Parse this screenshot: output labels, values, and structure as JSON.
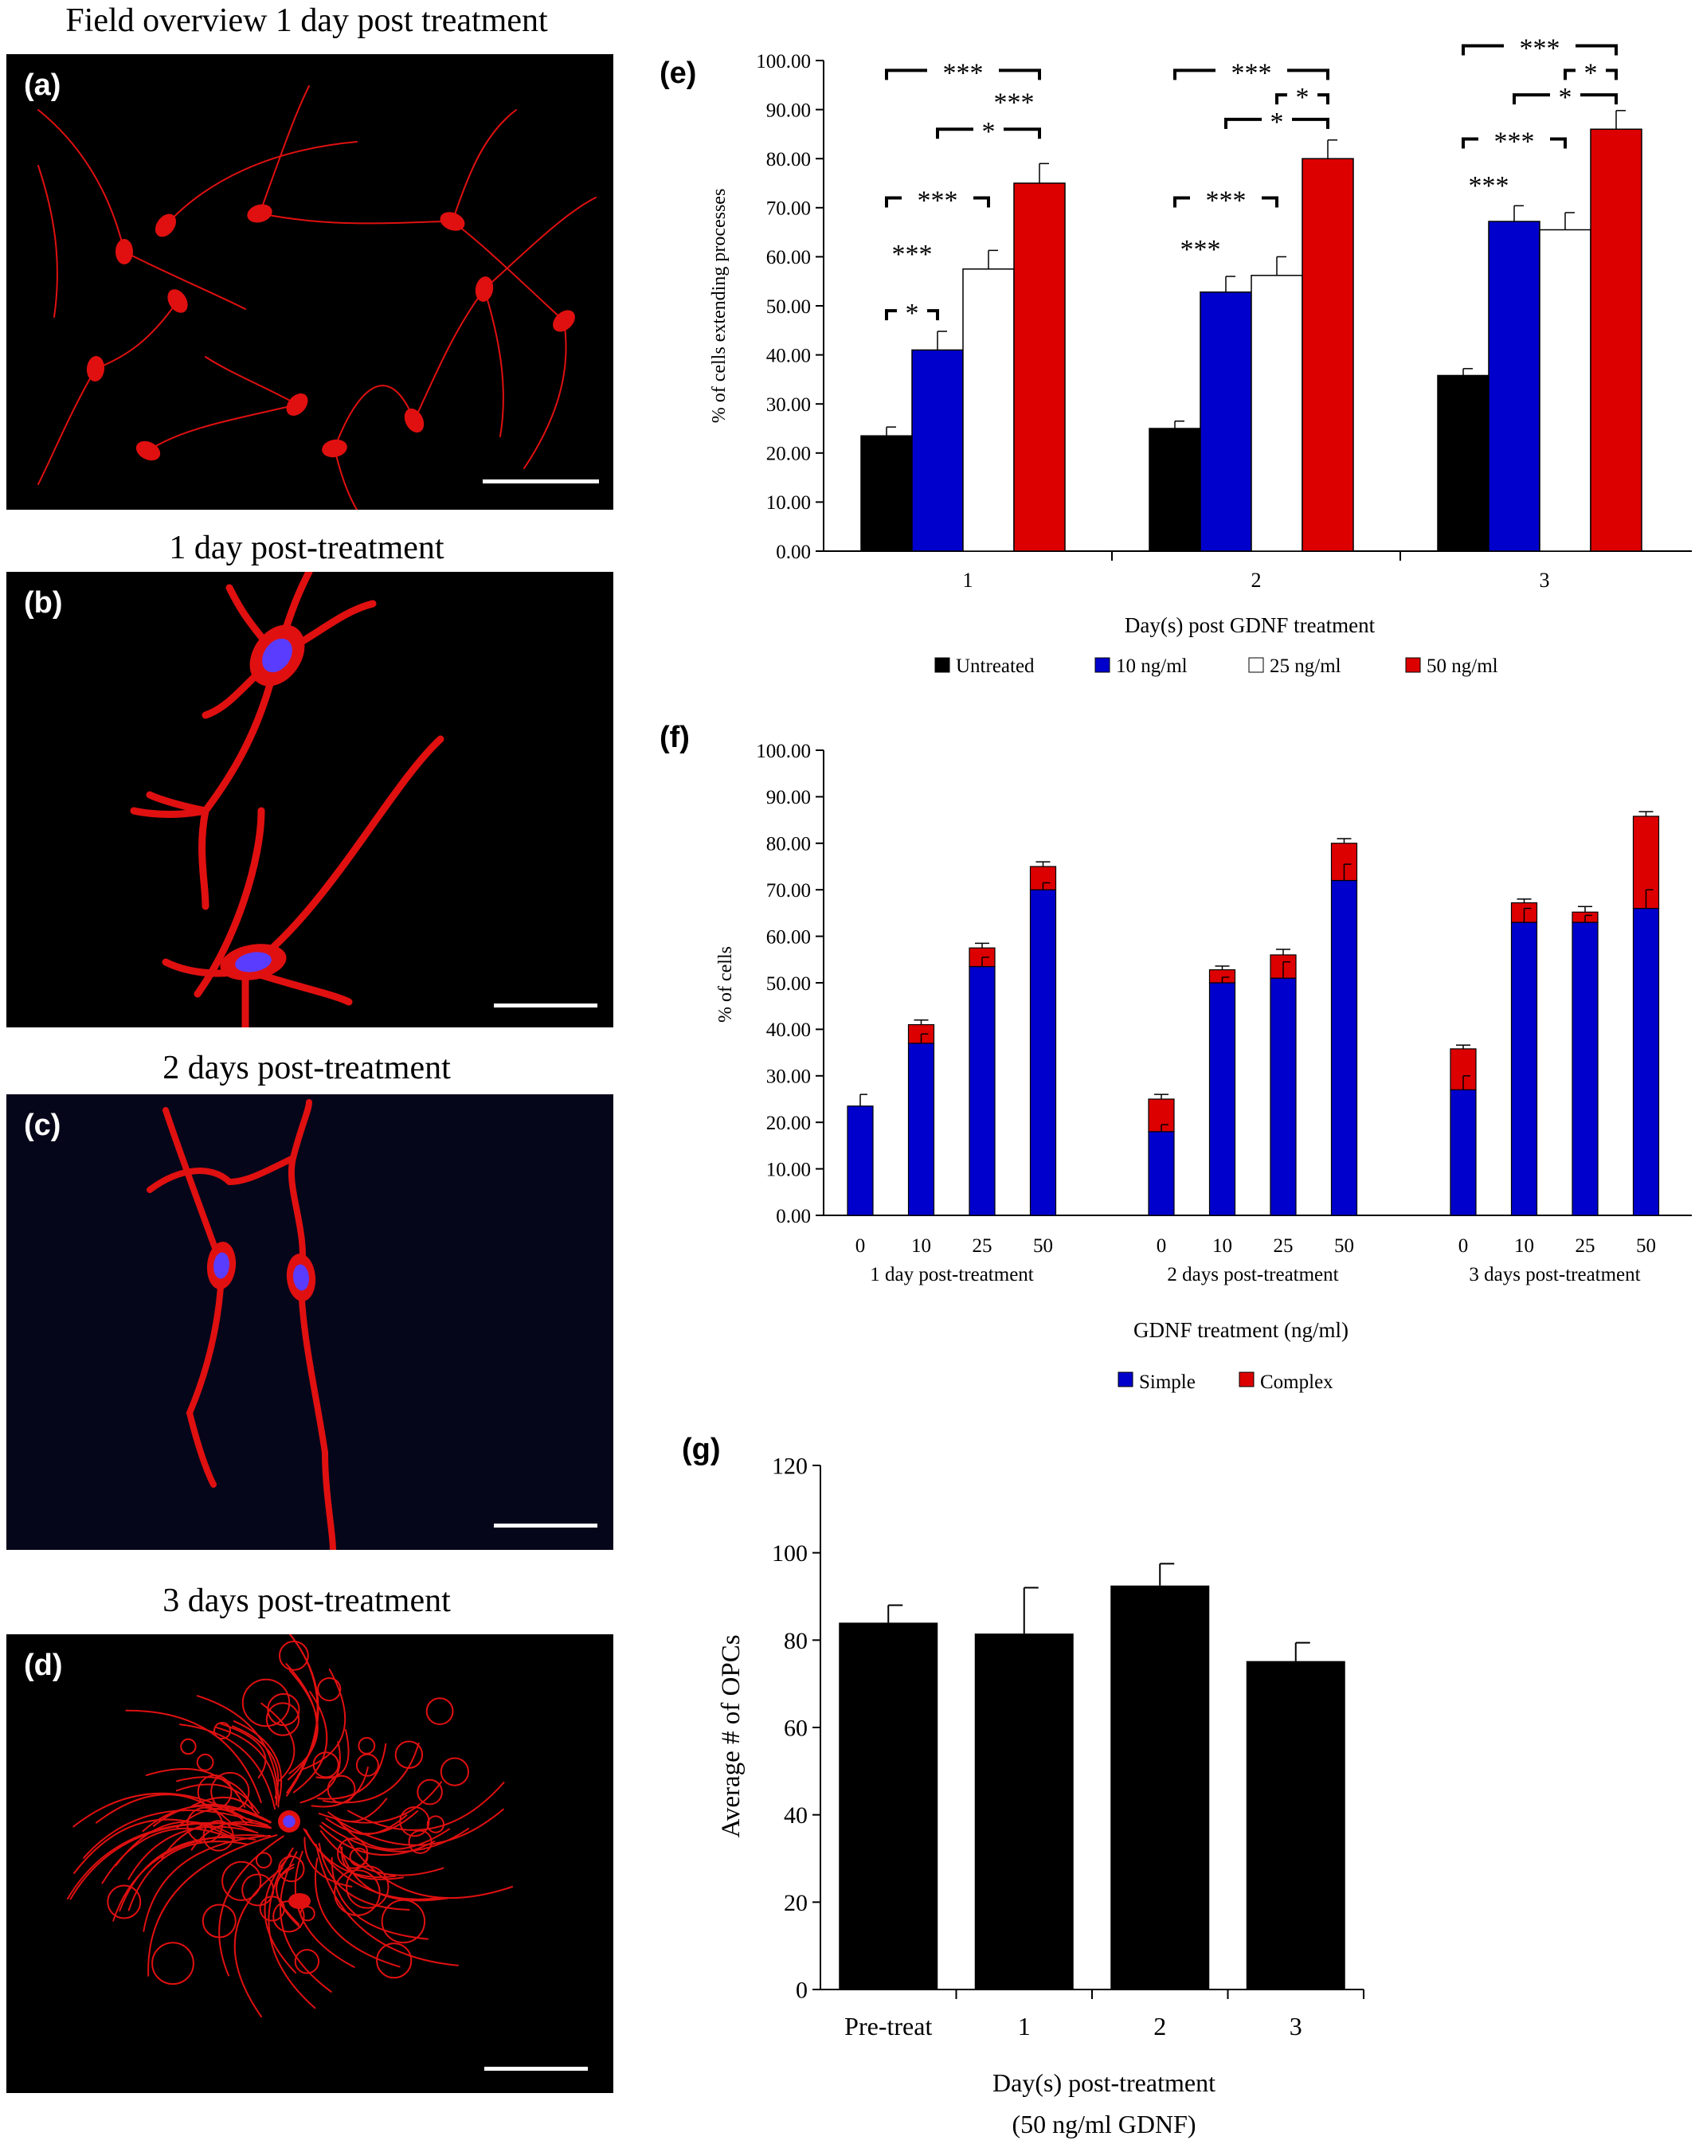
{
  "micrographs": [
    {
      "label": "(a)",
      "title": "Field overview 1 day post treatment"
    },
    {
      "label": "(b)",
      "title": "1 day post-treatment"
    },
    {
      "label": "(c)",
      "title": "2 days post-treatment"
    },
    {
      "label": "(d)",
      "title": "3 days post-treatment"
    }
  ],
  "colors": {
    "untreated": "#000000",
    "ng10": "#0000cc",
    "ng25": "#ffffff",
    "ng50": "#dd0000",
    "simple": "#0000cc",
    "complex": "#dd0000",
    "cell": "#e01010",
    "nucleus": "#5a3cff"
  },
  "chart_data": [
    {
      "panel_label": "(e)",
      "type": "bar",
      "ylabel": "% of cells extending processes",
      "xlabel": "Day(s) post GDNF treatment",
      "categories": [
        "1",
        "2",
        "3"
      ],
      "ylim": [
        0,
        100
      ],
      "yticks": [
        "0.00",
        "10.00",
        "20.00",
        "30.00",
        "40.00",
        "50.00",
        "60.00",
        "70.00",
        "80.00",
        "90.00",
        "100.00"
      ],
      "legend_position": "bottom",
      "series": [
        {
          "name": "Untreated",
          "values": [
            23.5,
            25.0,
            35.8
          ],
          "errors": [
            1.8,
            1.5,
            1.4
          ]
        },
        {
          "name": "10 ng/ml",
          "values": [
            41.0,
            52.8,
            67.2
          ],
          "errors": [
            3.8,
            3.2,
            3.2
          ]
        },
        {
          "name": "25 ng/ml",
          "values": [
            57.5,
            56.2,
            65.5
          ],
          "errors": [
            3.8,
            3.8,
            3.5
          ]
        },
        {
          "name": "50 ng/ml",
          "values": [
            75.0,
            80.0,
            86.0
          ],
          "errors": [
            4.0,
            3.8,
            3.8
          ]
        }
      ],
      "significance": [
        {
          "day": "1",
          "from": "Untreated",
          "to": "10 ng/ml",
          "label": "*"
        },
        {
          "day": "1",
          "from": "Untreated",
          "to": "10 ng/ml",
          "label": "***"
        },
        {
          "day": "1",
          "from": "Untreated",
          "to": "25 ng/ml",
          "label": "***"
        },
        {
          "day": "1",
          "from": "10 ng/ml",
          "to": "50 ng/ml",
          "label": "*"
        },
        {
          "day": "1",
          "from": "25 ng/ml",
          "to": "50 ng/ml",
          "label": "***"
        },
        {
          "day": "1",
          "from": "Untreated",
          "to": "50 ng/ml",
          "label": "***"
        },
        {
          "day": "2",
          "from": "Untreated",
          "to": "10 ng/ml",
          "label": "***"
        },
        {
          "day": "2",
          "from": "Untreated",
          "to": "25 ng/ml",
          "label": "***"
        },
        {
          "day": "2",
          "from": "10 ng/ml",
          "to": "50 ng/ml",
          "label": "*"
        },
        {
          "day": "2",
          "from": "25 ng/ml",
          "to": "50 ng/ml",
          "label": "*"
        },
        {
          "day": "2",
          "from": "Untreated",
          "to": "50 ng/ml",
          "label": "***"
        },
        {
          "day": "3",
          "from": "Untreated",
          "to": "10 ng/ml",
          "label": "***"
        },
        {
          "day": "3",
          "from": "Untreated",
          "to": "25 ng/ml",
          "label": "***"
        },
        {
          "day": "3",
          "from": "10 ng/ml",
          "to": "50 ng/ml",
          "label": "*"
        },
        {
          "day": "3",
          "from": "25 ng/ml",
          "to": "50 ng/ml",
          "label": "*"
        },
        {
          "day": "3",
          "from": "Untreated",
          "to": "50 ng/ml",
          "label": "***"
        }
      ]
    },
    {
      "panel_label": "(f)",
      "type": "bar",
      "stacked": true,
      "ylabel": "% of cells",
      "xlabel": "GDNF treatment (ng/ml)",
      "group_labels": [
        "1 day post-treatment",
        "2 days post-treatment",
        "3 days post-treatment"
      ],
      "categories": [
        "0",
        "10",
        "25",
        "50"
      ],
      "ylim": [
        0,
        100
      ],
      "yticks": [
        "0.00",
        "10.00",
        "20.00",
        "30.00",
        "40.00",
        "50.00",
        "60.00",
        "70.00",
        "80.00",
        "90.00",
        "100.00"
      ],
      "legend_position": "bottom",
      "series": [
        {
          "name": "Simple",
          "values": [
            [
              23.5,
              37.0,
              53.5,
              70.0
            ],
            [
              18.0,
              50.0,
              51.0,
              72.0
            ],
            [
              27.0,
              63.0,
              63.0,
              66.0
            ]
          ],
          "errors": [
            [
              2.5,
              2.0,
              2.0,
              1.5
            ],
            [
              1.5,
              1.2,
              3.5,
              3.5
            ],
            [
              3.0,
              3.0,
              1.5,
              4.0
            ]
          ]
        },
        {
          "name": "Complex",
          "values": [
            [
              0.0,
              4.0,
              4.0,
              5.0
            ],
            [
              7.0,
              2.8,
              5.0,
              8.0
            ],
            [
              8.8,
              4.2,
              2.2,
              19.8
            ]
          ],
          "errors": [
            [
              0,
              1.0,
              1.0,
              1.0
            ],
            [
              1.0,
              0.8,
              1.2,
              1.0
            ],
            [
              0.8,
              0.8,
              1.2,
              1.0
            ]
          ]
        }
      ]
    },
    {
      "panel_label": "(g)",
      "type": "bar",
      "ylabel": "Average # of OPCs",
      "xlabel": "Day(s) post-treatment",
      "xlabel2": "(50 ng/ml GDNF)",
      "categories": [
        "Pre-treat",
        "1",
        "2",
        "3"
      ],
      "values": [
        84,
        81.5,
        92.5,
        75.2
      ],
      "errors": [
        4,
        10.5,
        5,
        4.2
      ],
      "ylim": [
        0,
        120
      ],
      "yticks": [
        "0",
        "20",
        "40",
        "60",
        "80",
        "100",
        "120"
      ]
    }
  ]
}
